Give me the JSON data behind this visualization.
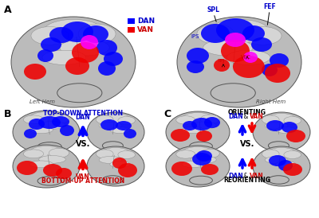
{
  "panel_A_label": "A",
  "panel_B_label": "B",
  "panel_C_label": "C",
  "left_hem_label": "Left Hem",
  "right_hem_label": "Right Hem",
  "legend_DAN": "DAN",
  "legend_VAN": "VAN",
  "dan_color": "#0000FF",
  "van_color": "#EE0000",
  "overlap_color": "#FF00FF",
  "panel_B_top_text1": "TOP-DOWN ATTENTION",
  "panel_B_top_text2": "DAN",
  "panel_B_vs": "VS.",
  "panel_B_bot_text1": "VAN",
  "panel_B_bot_text2": "BOTTOM-UP ATTENTION",
  "panel_C_top_text1": "ORIENTING",
  "panel_C_top_text2_dan": "DAN",
  "panel_C_top_text2_amp": " & ",
  "panel_C_top_text2_van": "VAN",
  "panel_C_vs": "VS.",
  "panel_C_bot_dan": "DAN",
  "panel_C_bot_amp": " & ",
  "panel_C_bot_van": "VAN",
  "panel_C_bot_text2": "REORIENTING",
  "bg_color": "#FFFFFF",
  "text_black": "#000000",
  "text_blue": "#0000CC",
  "text_red": "#CC0000",
  "brain_base": "#BBBBBB",
  "brain_highlight": "#D5D5D5",
  "brain_shadow": "#888888",
  "brain_edge": "#555555"
}
